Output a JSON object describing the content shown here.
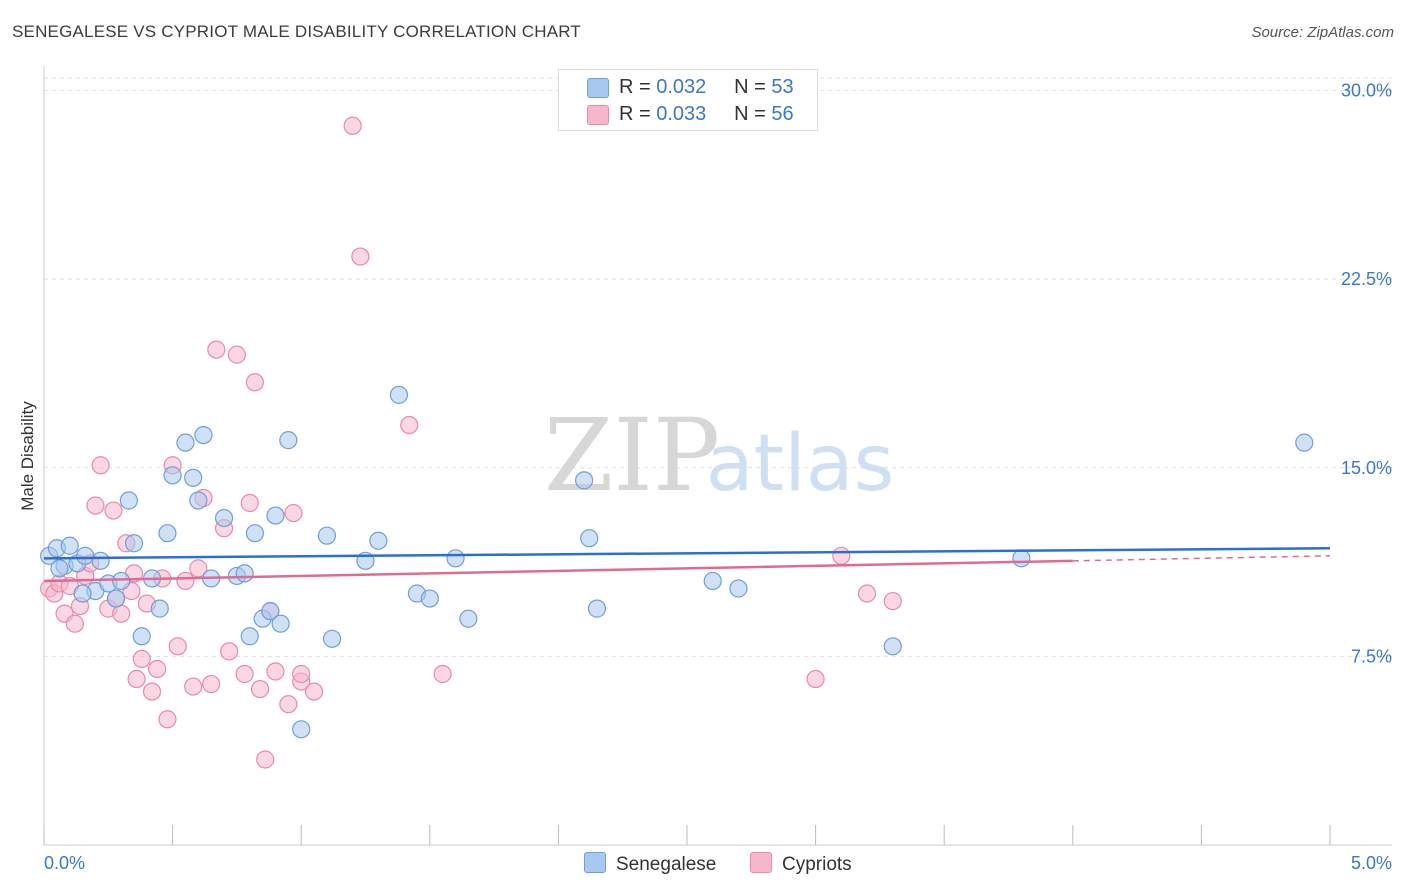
{
  "title": "SENEGALESE VS CYPRIOT MALE DISABILITY CORRELATION CHART",
  "source": "Source: ZipAtlas.com",
  "watermark": {
    "zip": "ZIP",
    "atlas": "atlas"
  },
  "legend_stats": [
    {
      "r_label": "R = ",
      "r_value": "0.032",
      "n_label": "N = ",
      "n_value": "53"
    },
    {
      "r_label": "R = ",
      "r_value": "0.033",
      "n_label": "N = ",
      "n_value": "56"
    }
  ],
  "colors": {
    "senegalese_fill": "#a9c8ef",
    "senegalese_stroke": "#6f9fd8",
    "senegalese_line": "#2b6fd0",
    "cypriots_fill": "#f6b6cb",
    "cypriots_stroke": "#e98aaa",
    "cypriots_line": "#e06a94",
    "axis_label": "#3a78c9",
    "grid": "#dddddd"
  },
  "chart_data": {
    "type": "scatter",
    "title": "SENEGALESE VS CYPRIOT MALE DISABILITY CORRELATION CHART",
    "xlabel": "",
    "ylabel": "Male Disability",
    "xlim": [
      0,
      5
    ],
    "ylim": [
      0,
      30.5
    ],
    "x_tick_labels": [
      "0.0%",
      "5.0%"
    ],
    "y_ticks": [
      7.5,
      15.0,
      22.5,
      30.0
    ],
    "y_tick_labels": [
      "7.5%",
      "15.0%",
      "22.5%",
      "30.0%"
    ],
    "grid": true,
    "legend": "bottom-center",
    "series": [
      {
        "name": "Senegalese",
        "trend": {
          "x": [
            0,
            5
          ],
          "y": [
            11.4,
            11.8
          ]
        },
        "points": [
          [
            0.02,
            11.5
          ],
          [
            0.05,
            11.8
          ],
          [
            0.08,
            11.1
          ],
          [
            0.1,
            11.9
          ],
          [
            0.13,
            11.2
          ],
          [
            0.16,
            11.5
          ],
          [
            0.2,
            10.1
          ],
          [
            0.22,
            11.3
          ],
          [
            0.25,
            10.4
          ],
          [
            0.28,
            9.8
          ],
          [
            0.3,
            10.5
          ],
          [
            0.33,
            13.7
          ],
          [
            0.35,
            12.0
          ],
          [
            0.38,
            8.3
          ],
          [
            0.42,
            10.6
          ],
          [
            0.45,
            9.4
          ],
          [
            0.48,
            12.4
          ],
          [
            0.5,
            14.7
          ],
          [
            0.55,
            16.0
          ],
          [
            0.58,
            14.6
          ],
          [
            0.6,
            13.7
          ],
          [
            0.62,
            16.3
          ],
          [
            0.65,
            10.6
          ],
          [
            0.7,
            13.0
          ],
          [
            0.75,
            10.7
          ],
          [
            0.78,
            10.8
          ],
          [
            0.82,
            12.4
          ],
          [
            0.85,
            9.0
          ],
          [
            0.9,
            13.1
          ],
          [
            0.95,
            16.1
          ],
          [
            0.8,
            8.3
          ],
          [
            0.88,
            9.3
          ],
          [
            0.92,
            8.8
          ],
          [
            1.0,
            4.6
          ],
          [
            1.1,
            12.3
          ],
          [
            1.12,
            8.2
          ],
          [
            1.25,
            11.3
          ],
          [
            1.3,
            12.1
          ],
          [
            1.38,
            17.9
          ],
          [
            1.45,
            10.0
          ],
          [
            1.5,
            9.8
          ],
          [
            1.6,
            11.4
          ],
          [
            1.65,
            9.0
          ],
          [
            2.1,
            14.5
          ],
          [
            2.12,
            12.2
          ],
          [
            2.15,
            9.4
          ],
          [
            2.6,
            10.5
          ],
          [
            2.7,
            10.2
          ],
          [
            3.3,
            7.9
          ],
          [
            3.8,
            11.4
          ],
          [
            4.9,
            16.0
          ],
          [
            0.06,
            11.0
          ],
          [
            0.15,
            10.0
          ]
        ]
      },
      {
        "name": "Cypriots",
        "trend": {
          "x": [
            0,
            4
          ],
          "y": [
            10.5,
            11.3
          ]
        },
        "trend_dashed": {
          "x": [
            4,
            5
          ],
          "y": [
            11.3,
            11.5
          ]
        },
        "points": [
          [
            0.02,
            10.2
          ],
          [
            0.04,
            10.0
          ],
          [
            0.06,
            10.4
          ],
          [
            0.08,
            9.2
          ],
          [
            0.1,
            10.3
          ],
          [
            0.12,
            8.8
          ],
          [
            0.14,
            9.5
          ],
          [
            0.16,
            10.7
          ],
          [
            0.18,
            11.2
          ],
          [
            0.2,
            13.5
          ],
          [
            0.22,
            15.1
          ],
          [
            0.25,
            9.4
          ],
          [
            0.27,
            13.3
          ],
          [
            0.3,
            9.2
          ],
          [
            0.32,
            12.0
          ],
          [
            0.34,
            10.1
          ],
          [
            0.36,
            6.6
          ],
          [
            0.38,
            7.4
          ],
          [
            0.4,
            9.6
          ],
          [
            0.42,
            6.1
          ],
          [
            0.44,
            7.0
          ],
          [
            0.46,
            10.6
          ],
          [
            0.48,
            5.0
          ],
          [
            0.5,
            15.1
          ],
          [
            0.52,
            7.9
          ],
          [
            0.55,
            10.5
          ],
          [
            0.58,
            6.3
          ],
          [
            0.6,
            11.0
          ],
          [
            0.62,
            13.8
          ],
          [
            0.65,
            6.4
          ],
          [
            0.67,
            19.7
          ],
          [
            0.7,
            12.6
          ],
          [
            0.72,
            7.7
          ],
          [
            0.75,
            19.5
          ],
          [
            0.78,
            6.8
          ],
          [
            0.8,
            13.6
          ],
          [
            0.82,
            18.4
          ],
          [
            0.84,
            6.2
          ],
          [
            0.86,
            3.4
          ],
          [
            0.88,
            9.3
          ],
          [
            0.9,
            6.9
          ],
          [
            0.95,
            5.6
          ],
          [
            0.97,
            13.2
          ],
          [
            1.0,
            6.5
          ],
          [
            1.05,
            6.1
          ],
          [
            1.0,
            6.8
          ],
          [
            1.2,
            28.6
          ],
          [
            1.23,
            23.4
          ],
          [
            1.42,
            16.7
          ],
          [
            1.55,
            6.8
          ],
          [
            3.0,
            6.6
          ],
          [
            3.1,
            11.5
          ],
          [
            3.2,
            10.0
          ],
          [
            3.3,
            9.7
          ],
          [
            0.28,
            9.8
          ],
          [
            0.35,
            10.8
          ]
        ]
      }
    ]
  }
}
